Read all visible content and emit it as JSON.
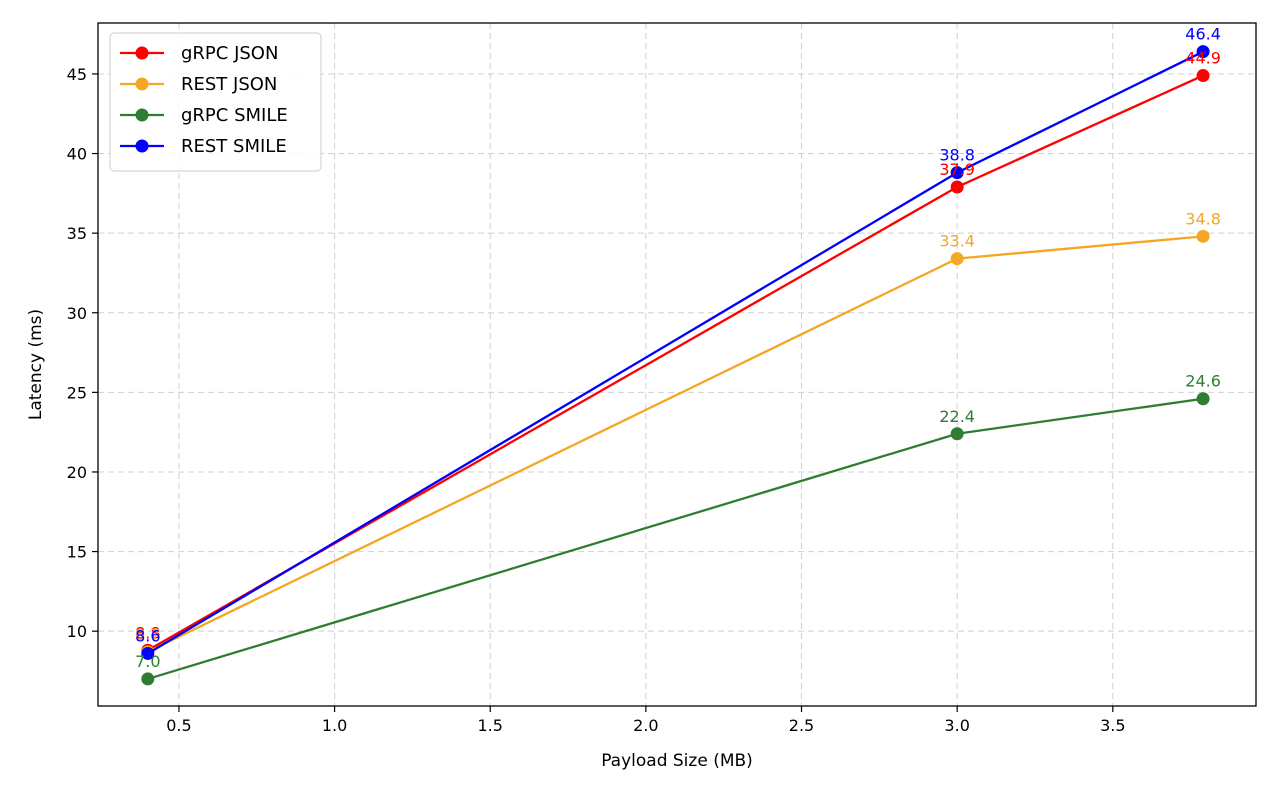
{
  "chart_data": {
    "type": "line",
    "title": "",
    "xlabel": "Payload Size (MB)",
    "ylabel": "Latency (ms)",
    "xlim": [
      0.24,
      3.96
    ],
    "ylim": [
      5.3,
      48.2
    ],
    "xticks": [
      0.5,
      1.0,
      1.5,
      2.0,
      2.5,
      3.0,
      3.5
    ],
    "xtick_labels": [
      "0.5",
      "1.0",
      "1.5",
      "2.0",
      "2.5",
      "3.0",
      "3.5"
    ],
    "yticks": [
      10,
      15,
      20,
      25,
      30,
      35,
      40,
      45
    ],
    "ytick_labels": [
      "10",
      "15",
      "20",
      "25",
      "30",
      "35",
      "40",
      "45"
    ],
    "grid": true,
    "legend_position": "top-left",
    "x": [
      0.4,
      3.0,
      3.79
    ],
    "series": [
      {
        "name": "gRPC JSON",
        "color": "#ff0000",
        "values": [
          8.8,
          37.9,
          44.9
        ],
        "labels": [
          "8.8",
          "37.9",
          "44.9"
        ]
      },
      {
        "name": "REST JSON",
        "color": "#f5a623",
        "values": [
          8.7,
          33.4,
          34.8
        ],
        "labels": [
          "8.7",
          "33.4",
          "34.8"
        ]
      },
      {
        "name": "gRPC SMILE",
        "color": "#2e7d32",
        "values": [
          7.0,
          22.4,
          24.6
        ],
        "labels": [
          "7.0",
          "22.4",
          "24.6"
        ]
      },
      {
        "name": "REST SMILE",
        "color": "#0000ff",
        "values": [
          8.6,
          38.8,
          46.4
        ],
        "labels": [
          "8.6",
          "38.8",
          "46.4"
        ]
      }
    ]
  }
}
